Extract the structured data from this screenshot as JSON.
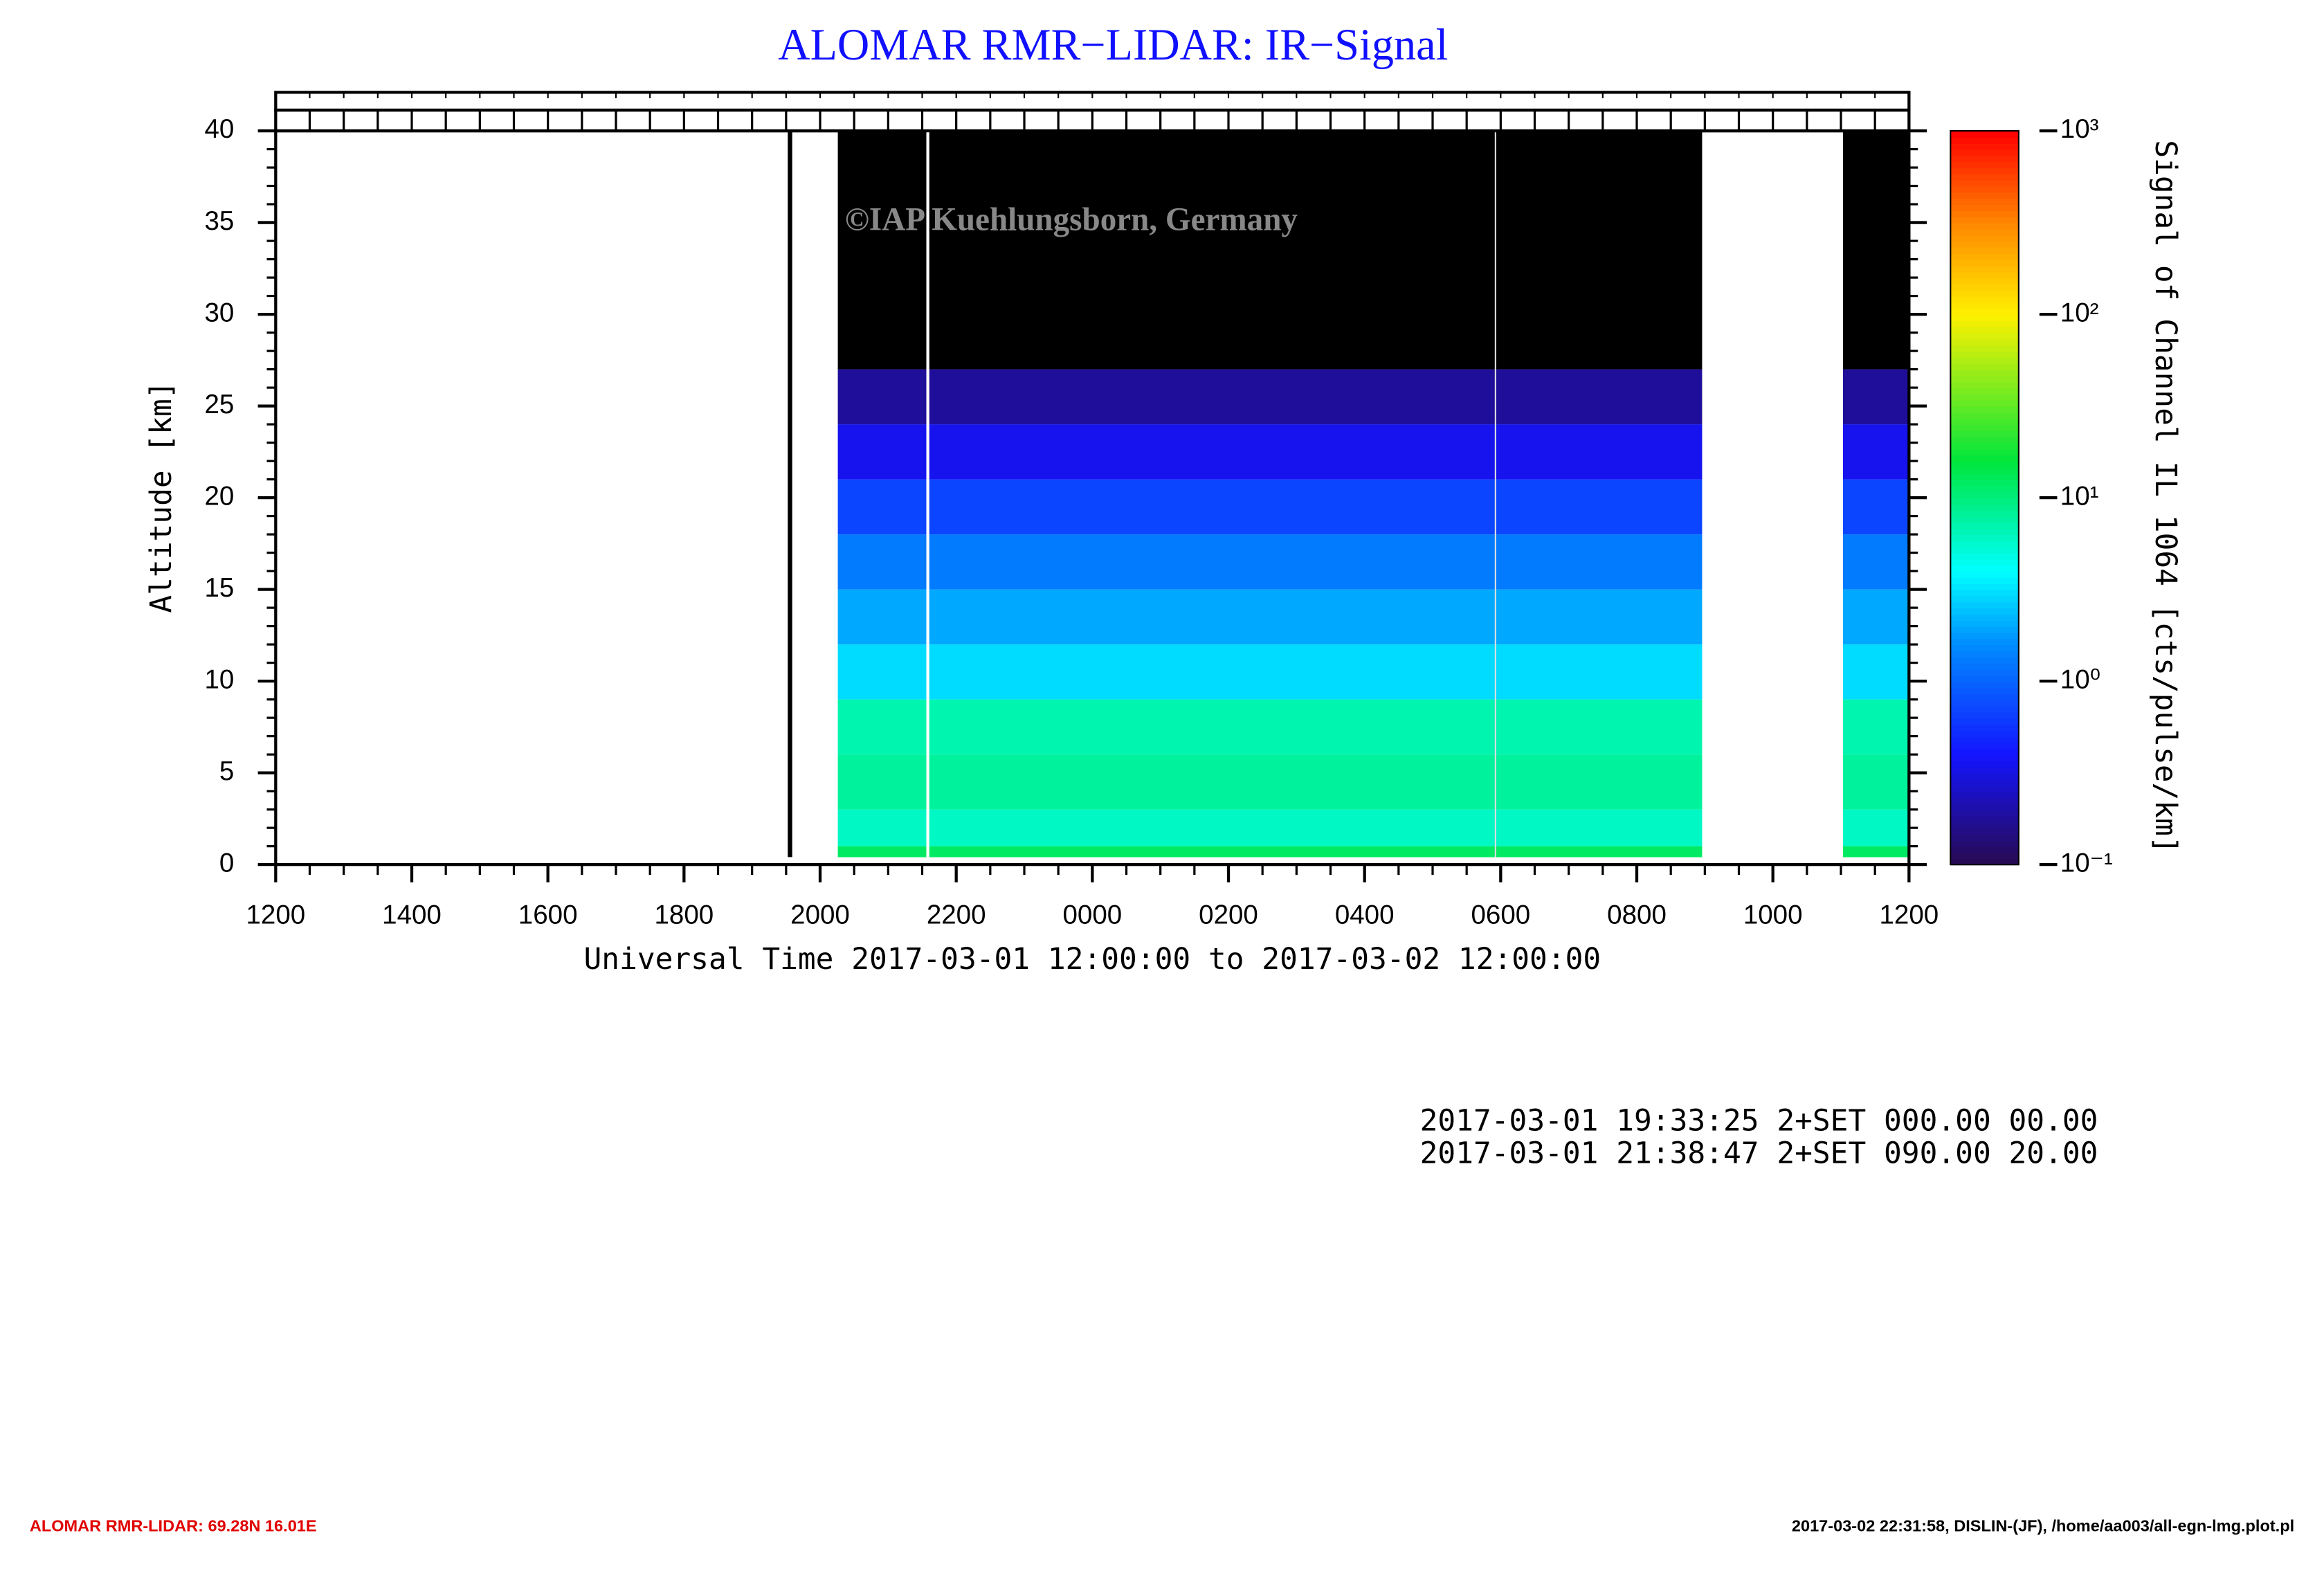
{
  "chart_data": {
    "type": "heatmap",
    "title": "ALOMAR RMR−LIDAR: IR−Signal",
    "watermark": "©IAP Kuehlungsborn, Germany",
    "xlabel": "Universal Time 2017-03-01 12:00:00 to 2017-03-02 12:00:00",
    "ylabel": "Altitude [km]",
    "colorbar_label": "Signal of Channel IL 1064 [cts/pulse/km]",
    "xlim": [
      0,
      24
    ],
    "xticks": [
      {
        "value": 0,
        "label": "1200"
      },
      {
        "value": 2,
        "label": "1400"
      },
      {
        "value": 4,
        "label": "1600"
      },
      {
        "value": 6,
        "label": "1800"
      },
      {
        "value": 8,
        "label": "2000"
      },
      {
        "value": 10,
        "label": "2200"
      },
      {
        "value": 12,
        "label": "0000"
      },
      {
        "value": 14,
        "label": "0200"
      },
      {
        "value": 16,
        "label": "0400"
      },
      {
        "value": 18,
        "label": "0600"
      },
      {
        "value": 20,
        "label": "0800"
      },
      {
        "value": 22,
        "label": "1000"
      },
      {
        "value": 24,
        "label": "1200"
      }
    ],
    "ylim": [
      0,
      40
    ],
    "yticks": [
      0,
      5,
      10,
      15,
      20,
      25,
      30,
      35,
      40
    ],
    "clim": [
      0.1,
      1000
    ],
    "log_color_scale": true,
    "cticks": [
      {
        "value": 0.1,
        "label": "10⁻¹"
      },
      {
        "value": 1,
        "label": "10⁰"
      },
      {
        "value": 10,
        "label": "10¹"
      },
      {
        "value": 100,
        "label": "10²"
      },
      {
        "value": 1000,
        "label": "10³"
      }
    ],
    "data_periods": [
      [
        8.26,
        20.96
      ],
      [
        23.03,
        24
      ]
    ],
    "altitude_bins": [
      0.4,
      1,
      3,
      6,
      9,
      12,
      15,
      18,
      21,
      24,
      27,
      40
    ],
    "profile_values": [
      12,
      6,
      8,
      7,
      3,
      2,
      1.3,
      0.7,
      0.35,
      0.18,
      0.05
    ],
    "log_lines": [
      "2017-03-01 19:33:25 2+SET 000.00 00.00",
      "2017-03-01 21:38:47 2+SET 090.00 20.00"
    ],
    "footer_left": "ALOMAR RMR-LIDAR: 69.28N 16.01E",
    "footer_right": "2017-03-02 22:31:58, DISLIN-(JF), /home/aa003/all-egn-lmg.plot.pl"
  }
}
